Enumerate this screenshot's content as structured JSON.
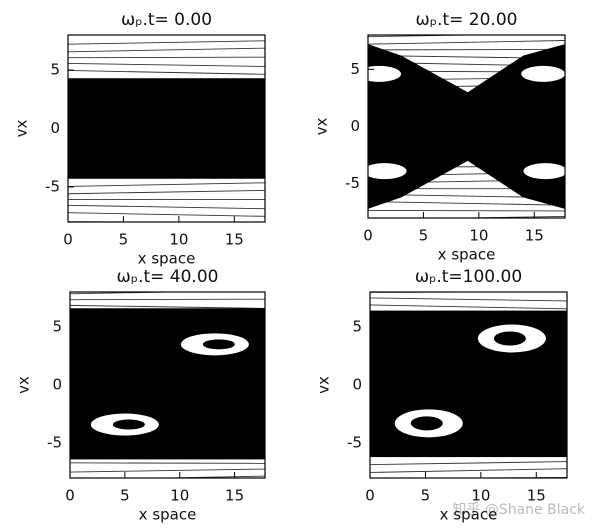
{
  "chart_data": [
    {
      "type": "contour",
      "title": "ωₚ.t=  0.00",
      "xlabel": "x space",
      "ylabel": "vx",
      "xlim": [
        0,
        17.77
      ],
      "ylim": [
        -8,
        8
      ],
      "xticks": [
        0,
        5,
        10,
        15
      ],
      "yticks": [
        -5,
        0,
        5
      ]
    },
    {
      "type": "contour",
      "title": "ωₚ.t= 20.00",
      "xlabel": "x space",
      "ylabel": "vx",
      "xlim": [
        0,
        17.77
      ],
      "ylim": [
        -8,
        8
      ],
      "xticks": [
        0,
        5,
        10,
        15
      ],
      "yticks": [
        -5,
        0,
        5
      ]
    },
    {
      "type": "contour",
      "title": "ωₚ.t= 40.00",
      "xlabel": "x space",
      "ylabel": "vx",
      "xlim": [
        0,
        17.77
      ],
      "ylim": [
        -8,
        8
      ],
      "xticks": [
        0,
        5,
        10,
        15
      ],
      "yticks": [
        -5,
        0,
        5
      ]
    },
    {
      "type": "contour",
      "title": "ωₚ.t=100.00",
      "xlabel": "x space",
      "ylabel": "vx",
      "xlim": [
        0,
        17.77
      ],
      "ylim": [
        -8,
        8
      ],
      "xticks": [
        0,
        5,
        10,
        15
      ],
      "yticks": [
        -5,
        0,
        5
      ]
    }
  ],
  "watermark": "知乎 @Shane Black"
}
